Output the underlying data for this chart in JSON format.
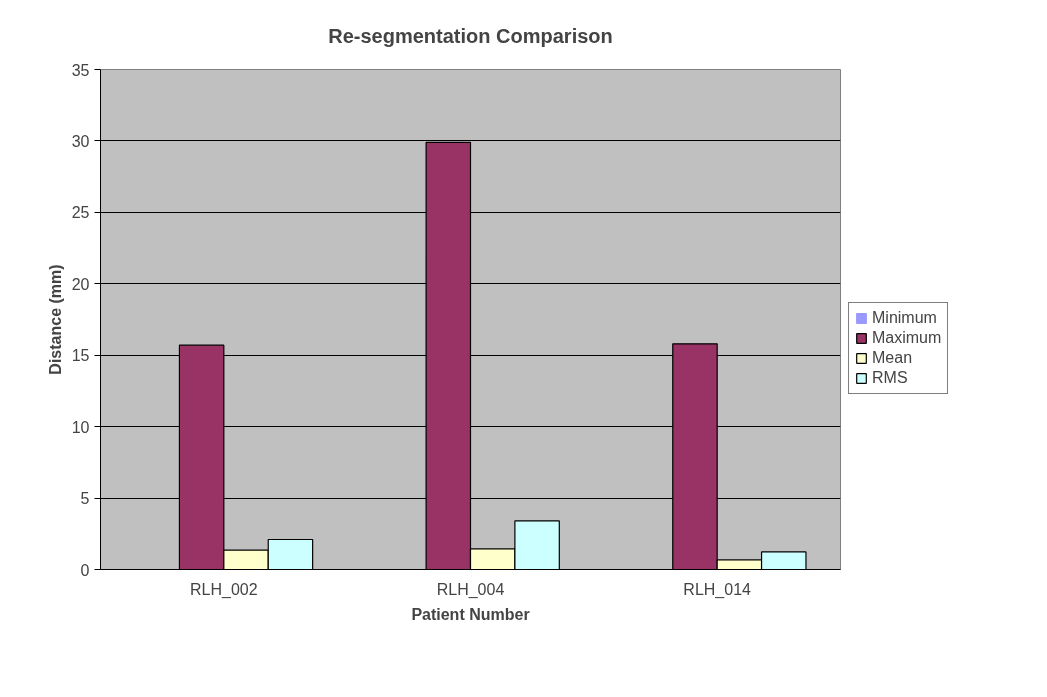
{
  "chart_data": {
    "type": "bar",
    "title": "Re-segmentation Comparison",
    "xlabel": "Patient Number",
    "ylabel": "Distance (mm)",
    "categories": [
      "RLH_002",
      "RLH_004",
      "RLH_014"
    ],
    "series": [
      {
        "name": "Minimum",
        "color": "#9999ff",
        "values": [
          0,
          0,
          0
        ]
      },
      {
        "name": "Maximum",
        "color": "#993366",
        "values": [
          15.7,
          29.9,
          15.8
        ]
      },
      {
        "name": "Mean",
        "color": "#ffffcc",
        "values": [
          1.36,
          1.45,
          0.68
        ]
      },
      {
        "name": "RMS",
        "color": "#ccffff",
        "values": [
          2.1,
          3.4,
          1.23
        ]
      }
    ],
    "ylim": [
      0,
      35
    ],
    "yticks": [
      0,
      5,
      10,
      15,
      20,
      25,
      30,
      35
    ],
    "grid": "y",
    "legend": "right"
  }
}
